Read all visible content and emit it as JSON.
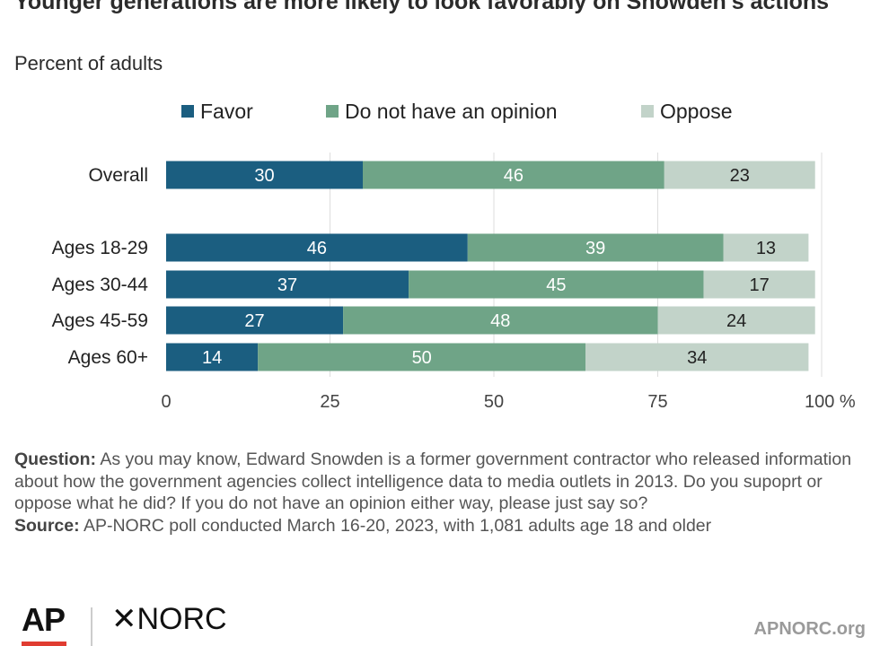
{
  "header": {
    "title": "Younger generations are more likely to look favorably on Snowden's actions",
    "subtitle": "Percent of adults"
  },
  "legend": {
    "items": [
      {
        "label": "Favor",
        "color": "#1b5e80"
      },
      {
        "label": "Do not have an opinion",
        "color": "#6fa487"
      },
      {
        "label": "Oppose",
        "color": "#c2d3c9"
      }
    ]
  },
  "chart_data": {
    "type": "bar",
    "orientation": "horizontal",
    "stacked": true,
    "categories": [
      "Overall",
      "Ages 18-29",
      "Ages 30-44",
      "Ages 45-59",
      "Ages 60+"
    ],
    "series": [
      {
        "name": "Favor",
        "values": [
          30,
          46,
          37,
          27,
          14
        ],
        "color": "#1b5e80",
        "label_color": "#ffffff"
      },
      {
        "name": "Do not have an opinion",
        "values": [
          46,
          39,
          45,
          48,
          50
        ],
        "color": "#6fa487",
        "label_color": "#ffffff"
      },
      {
        "name": "Oppose",
        "values": [
          23,
          13,
          17,
          24,
          34
        ],
        "color": "#c2d3c9",
        "label_color": "#222222"
      }
    ],
    "xlim": [
      0,
      100
    ],
    "xticks": [
      0,
      25,
      50,
      75,
      100
    ],
    "xtick_labels": [
      "0",
      "25",
      "50",
      "75",
      "100 %"
    ],
    "grid": true,
    "legend_position": "top"
  },
  "footnote": {
    "question_label": "Question:",
    "question_text": "As you may know, Edward Snowden is a former government contractor who released information about how the government agencies collect intelligence data to media outlets in 2013. Do you supoprt or oppose what he did? If you do not have an opinion either way, please just say so?",
    "source_label": "Source:",
    "source_text": "AP-NORC poll conducted March 16-20, 2023, with 1,081 adults age 18 and older"
  },
  "branding": {
    "ap_logo": "AP",
    "norc_logo": "✕NORC",
    "site": "APNORC.org"
  }
}
